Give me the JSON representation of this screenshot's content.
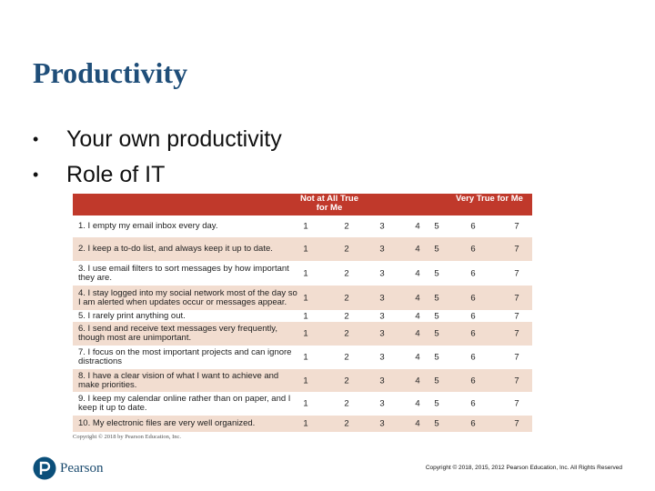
{
  "slide": {
    "title": "Productivity",
    "bullets": [
      {
        "bullet": "•",
        "text": "Your own productivity"
      },
      {
        "bullet": "•",
        "text": "Role of IT"
      }
    ]
  },
  "table": {
    "header_left": "Not at All True for Me",
    "header_right": "Very True for Me",
    "scale": [
      "1",
      "2",
      "3",
      "4",
      "5",
      "6",
      "7"
    ],
    "rows": [
      {
        "text": "1. I empty my email inbox every day."
      },
      {
        "text": "2. I keep a to-do list, and always keep it up to date."
      },
      {
        "text": "3. I use email filters to sort messages by how important they are."
      },
      {
        "text": "4. I stay logged into my social network most of the day so I am alerted when updates occur or messages appear."
      },
      {
        "text": "5. I rarely print anything out."
      },
      {
        "text": "6. I send and receive text messages very frequently, though most are unimportant."
      },
      {
        "text": "7. I focus on the most important projects and can ignore distractions"
      },
      {
        "text": "8. I have a clear vision of what I want to achieve and make priorities."
      },
      {
        "text": "9. I keep my calendar online rather than on paper, and I keep it up to date."
      },
      {
        "text": "10. My electronic files are very well organized."
      }
    ],
    "note": "Copyright © 2018 by Pearson Education, Inc."
  },
  "footer": {
    "logo_text": "Pearson",
    "copyright": "Copyright © 2018, 2015, 2012 Pearson Education, Inc. All Rights Reserved"
  },
  "colors": {
    "title": "#1f4e79",
    "table_header": "#c0392b",
    "row_alt": "#f2ddd0"
  }
}
